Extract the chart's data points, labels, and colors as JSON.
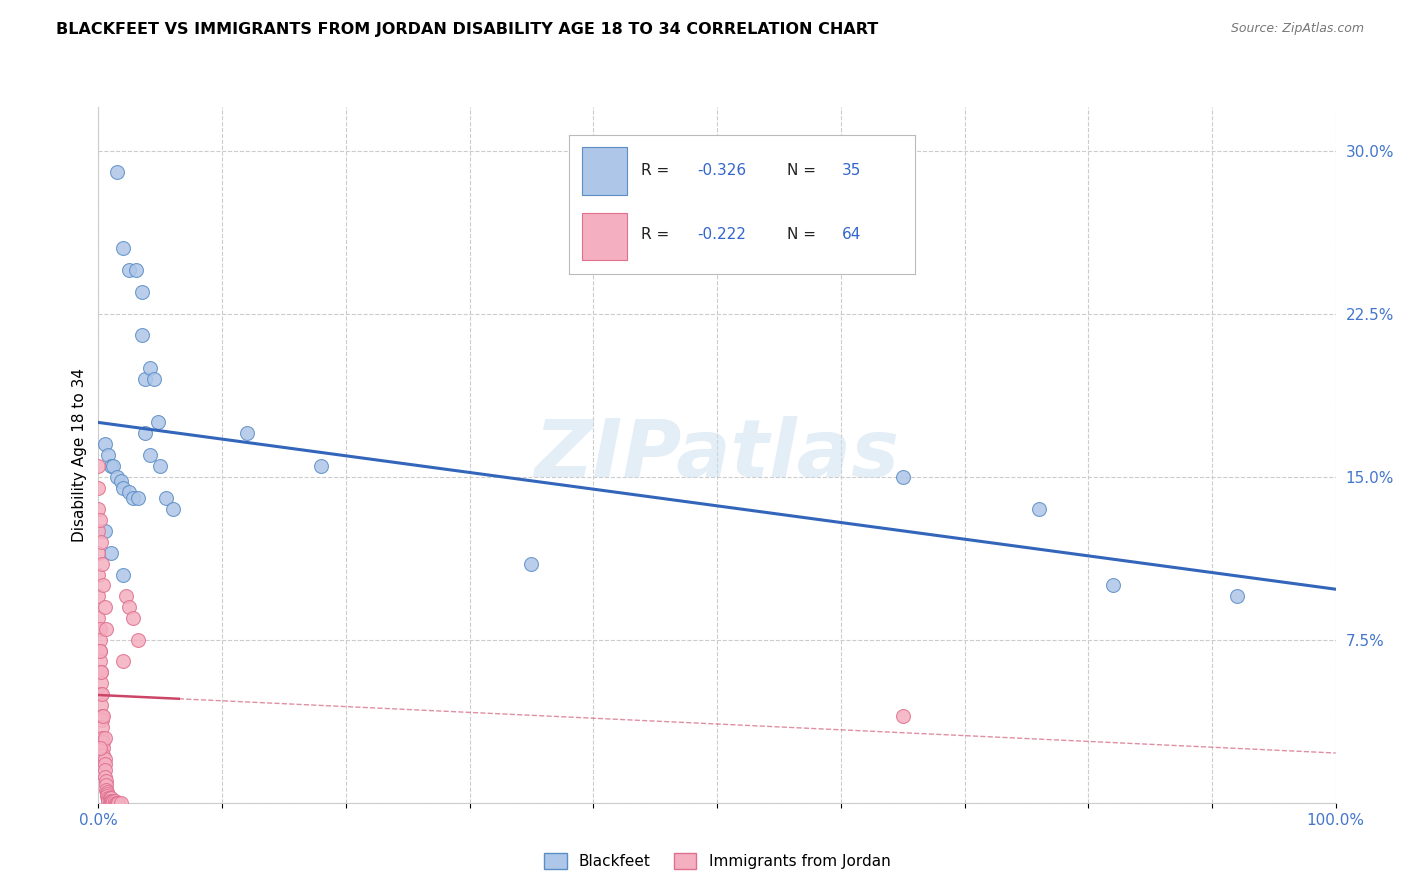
{
  "title": "BLACKFEET VS IMMIGRANTS FROM JORDAN DISABILITY AGE 18 TO 34 CORRELATION CHART",
  "source": "Source: ZipAtlas.com",
  "ylabel": "Disability Age 18 to 34",
  "xlim": [
    0,
    1.0
  ],
  "ylim": [
    0,
    0.32
  ],
  "xticks": [
    0.0,
    0.1,
    0.2,
    0.3,
    0.4,
    0.5,
    0.6,
    0.7,
    0.8,
    0.9,
    1.0
  ],
  "yticks": [
    0.0,
    0.075,
    0.15,
    0.225,
    0.3
  ],
  "watermark": "ZIPatlas",
  "legend_labels": [
    "Blackfeet",
    "Immigrants from Jordan"
  ],
  "R_blackfeet": -0.326,
  "N_blackfeet": 35,
  "R_jordan": -0.222,
  "N_jordan": 64,
  "blackfeet_color": "#aec6e8",
  "jordan_color": "#f4afc0",
  "blackfeet_edge_color": "#5b8ec4",
  "jordan_edge_color": "#e07090",
  "blackfeet_line_color": "#3366bb",
  "jordan_line_color": "#cc4466",
  "blackfeet_x": [
    0.015,
    0.02,
    0.025,
    0.03,
    0.035,
    0.035,
    0.038,
    0.042,
    0.045,
    0.048,
    0.005,
    0.008,
    0.01,
    0.012,
    0.015,
    0.018,
    0.02,
    0.025,
    0.028,
    0.032,
    0.038,
    0.042,
    0.05,
    0.055,
    0.06,
    0.12,
    0.18,
    0.35,
    0.65,
    0.76,
    0.82,
    0.92,
    0.005,
    0.01,
    0.02
  ],
  "blackfeet_y": [
    0.29,
    0.255,
    0.245,
    0.245,
    0.235,
    0.215,
    0.195,
    0.2,
    0.195,
    0.175,
    0.165,
    0.16,
    0.155,
    0.155,
    0.15,
    0.148,
    0.145,
    0.143,
    0.14,
    0.14,
    0.17,
    0.16,
    0.155,
    0.14,
    0.135,
    0.17,
    0.155,
    0.11,
    0.15,
    0.135,
    0.1,
    0.095,
    0.125,
    0.115,
    0.105
  ],
  "jordan_x": [
    0.0,
    0.0,
    0.0,
    0.0,
    0.0,
    0.0,
    0.0,
    0.001,
    0.001,
    0.001,
    0.001,
    0.002,
    0.002,
    0.002,
    0.002,
    0.003,
    0.003,
    0.003,
    0.003,
    0.004,
    0.004,
    0.004,
    0.005,
    0.005,
    0.005,
    0.005,
    0.006,
    0.006,
    0.006,
    0.007,
    0.007,
    0.007,
    0.008,
    0.008,
    0.009,
    0.009,
    0.01,
    0.01,
    0.011,
    0.012,
    0.013,
    0.014,
    0.015,
    0.016,
    0.018,
    0.02,
    0.022,
    0.025,
    0.028,
    0.032,
    0.0,
    0.001,
    0.002,
    0.003,
    0.004,
    0.005,
    0.006,
    0.001,
    0.002,
    0.003,
    0.004,
    0.005,
    0.65,
    0.001
  ],
  "jordan_y": [
    0.145,
    0.135,
    0.125,
    0.115,
    0.105,
    0.095,
    0.085,
    0.08,
    0.075,
    0.07,
    0.065,
    0.06,
    0.055,
    0.05,
    0.045,
    0.04,
    0.038,
    0.035,
    0.03,
    0.028,
    0.025,
    0.022,
    0.02,
    0.018,
    0.015,
    0.012,
    0.01,
    0.008,
    0.006,
    0.005,
    0.004,
    0.003,
    0.002,
    0.001,
    0.0,
    0.002,
    0.002,
    0.001,
    0.001,
    0.001,
    0.001,
    0.0,
    0.0,
    0.0,
    0.0,
    0.065,
    0.095,
    0.09,
    0.085,
    0.075,
    0.155,
    0.13,
    0.12,
    0.11,
    0.1,
    0.09,
    0.08,
    0.07,
    0.06,
    0.05,
    0.04,
    0.03,
    0.04,
    0.025
  ]
}
